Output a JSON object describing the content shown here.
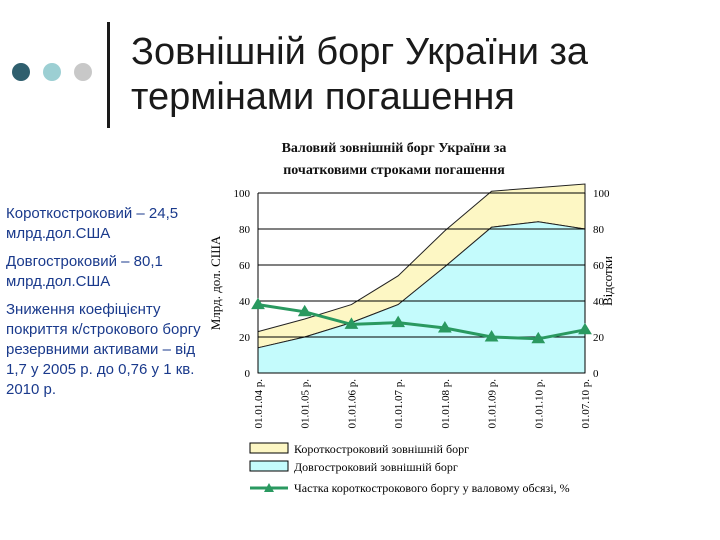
{
  "slide": {
    "title_line1": "Зовнішній борг України за",
    "title_line2": "термінами погашення"
  },
  "decor": {
    "dot_colors": [
      "#2f5f6e",
      "#9ccfd3",
      "#c8c8c8"
    ],
    "accent": "#1a3a8c"
  },
  "notes": {
    "short_term": "Короткостроковий – 24,5 млрд.дол.США",
    "long_term": "Довгостроковий – 80,1 млрд.дол.США",
    "coverage": "Зниження коефіцієнту покриття к/строкового боргу резервними активами – від 1,7 у 2005 р. до 0,76 у 1 кв. 2010 р."
  },
  "chart_data": {
    "type": "area",
    "title_line1": "Валовий зовнішній борг України за",
    "title_line2": "початковими строками погашення",
    "ylabel_left": "Млрд. дол. США",
    "ylabel_right": "Відсотки",
    "ylim_left": [
      0,
      100
    ],
    "ylim_right": [
      0,
      100
    ],
    "left_ticks": [
      "0",
      "20",
      "40",
      "60",
      "80",
      "100"
    ],
    "right_ticks": [
      "0",
      "20",
      "40",
      "60",
      "80",
      "100"
    ],
    "categories": [
      "01.01.04 р.",
      "01.01.05 р.",
      "01.01.06 р.",
      "01.01.07 р.",
      "01.01.08 р.",
      "01.01.09 р.",
      "01.01.10 р.",
      "01.07.10 р."
    ],
    "x": [
      0,
      1,
      2,
      3,
      4,
      5,
      6,
      7
    ],
    "series": [
      {
        "name": "Короткостроковий зовнішній борг",
        "kind": "stacked-area",
        "axis": "left",
        "color": "#fdf7c4",
        "values": [
          9,
          10,
          10,
          16,
          20,
          20,
          19,
          25
        ]
      },
      {
        "name": "Довгостроковий зовнішній борг",
        "kind": "stacked-area",
        "axis": "left",
        "color": "#c4fbfc",
        "values": [
          14,
          20,
          28,
          38,
          59,
          81,
          84,
          80
        ]
      },
      {
        "name": "Частка короткострокового боргу у валовому обсязі, %",
        "kind": "line",
        "axis": "right",
        "color": "#2a9960",
        "values": [
          38,
          34,
          27,
          28,
          25,
          20,
          19,
          24
        ]
      }
    ],
    "grid": true,
    "legend": "bottom"
  }
}
